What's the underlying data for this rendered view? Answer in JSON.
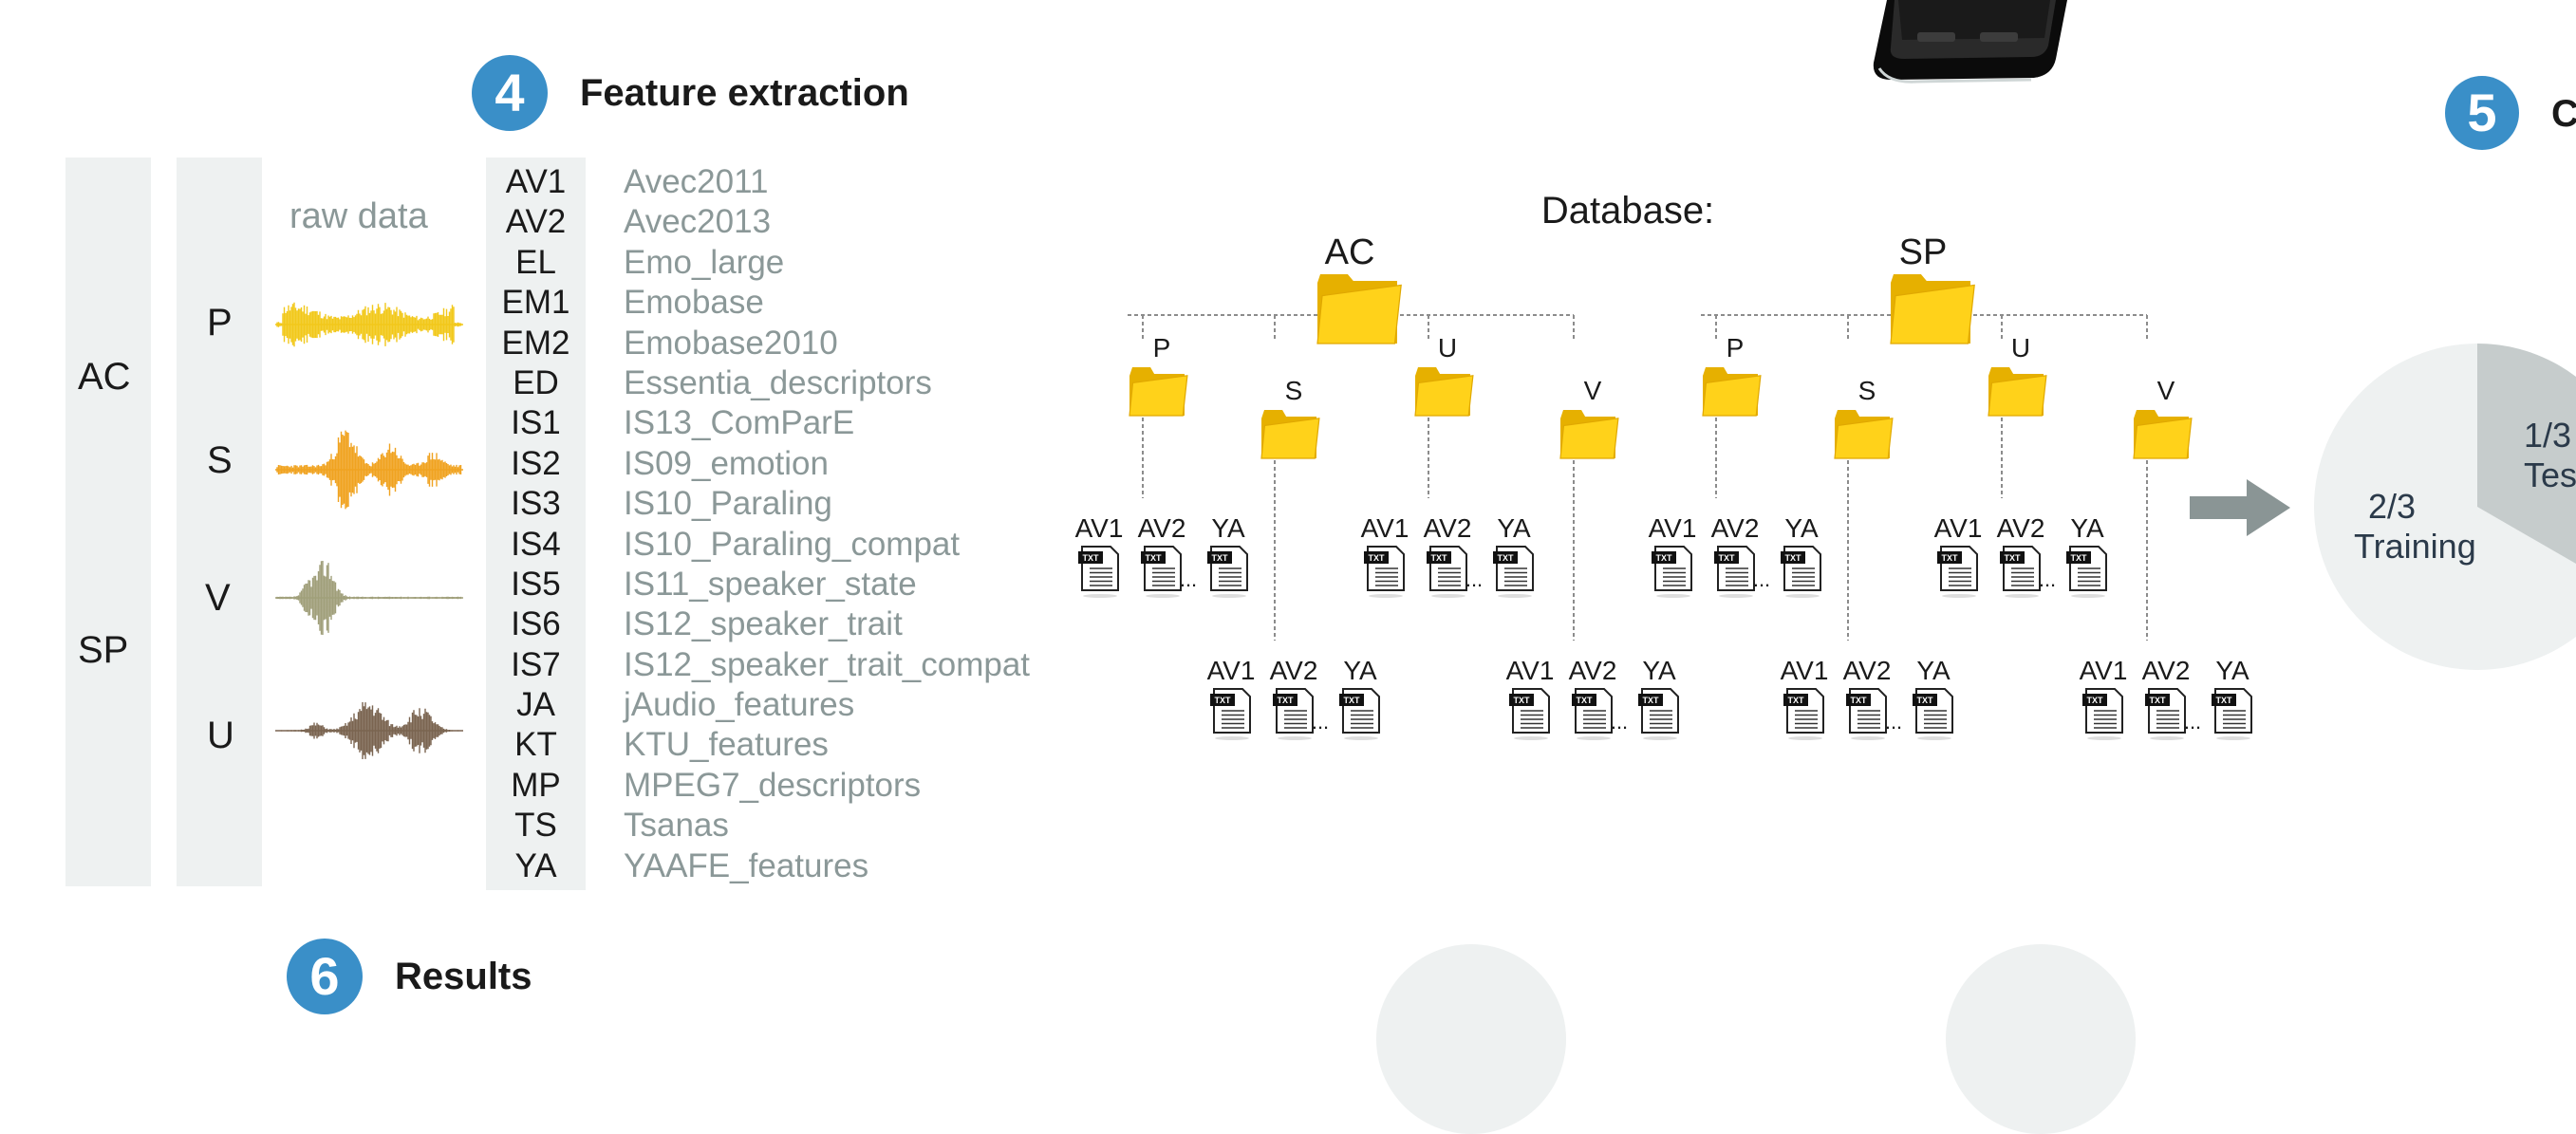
{
  "step4": {
    "number": "4",
    "title": "Feature extraction"
  },
  "step5": {
    "number": "5",
    "title": "C"
  },
  "step6": {
    "number": "6",
    "title": "Results"
  },
  "groups": [
    "AC",
    "SP"
  ],
  "signals": [
    {
      "label": "P",
      "color": "#f2c81a"
    },
    {
      "label": "S",
      "color": "#f0a320"
    },
    {
      "label": "V",
      "color": "#a09f7a"
    },
    {
      "label": "U",
      "color": "#7a6450"
    }
  ],
  "raw_data_label": "raw data",
  "features": [
    {
      "abbr": "AV1",
      "name": "Avec2011"
    },
    {
      "abbr": "AV2",
      "name": "Avec2013"
    },
    {
      "abbr": "EL",
      "name": "Emo_large"
    },
    {
      "abbr": "EM1",
      "name": "Emobase"
    },
    {
      "abbr": "EM2",
      "name": "Emobase2010"
    },
    {
      "abbr": "ED",
      "name": "Essentia_descriptors"
    },
    {
      "abbr": "IS1",
      "name": "IS13_ComParE"
    },
    {
      "abbr": "IS2",
      "name": "IS09_emotion"
    },
    {
      "abbr": "IS3",
      "name": "IS10_Paraling"
    },
    {
      "abbr": "IS4",
      "name": "IS10_Paraling_compat"
    },
    {
      "abbr": "IS5",
      "name": "IS11_speaker_state"
    },
    {
      "abbr": "IS6",
      "name": "IS12_speaker_trait"
    },
    {
      "abbr": "IS7",
      "name": "IS12_speaker_trait_compat"
    },
    {
      "abbr": "JA",
      "name": "jAudio_features"
    },
    {
      "abbr": "KT",
      "name": "KTU_features"
    },
    {
      "abbr": "MP",
      "name": "MPEG7_descriptors"
    },
    {
      "abbr": "TS",
      "name": "Tsanas"
    },
    {
      "abbr": "YA",
      "name": "YAAFE_features"
    }
  ],
  "database": {
    "label": "Database:",
    "roots": [
      "AC",
      "SP"
    ],
    "subfolders": [
      "P",
      "S",
      "U",
      "V"
    ],
    "file_labels": [
      "AV1",
      "AV2",
      "YA"
    ],
    "ellipsis": "...",
    "file_icon_text": "TXT"
  },
  "pie": {
    "training_fraction": "2/3",
    "training_label": "Training",
    "test_fraction": "1/3",
    "test_label": "Tes"
  }
}
